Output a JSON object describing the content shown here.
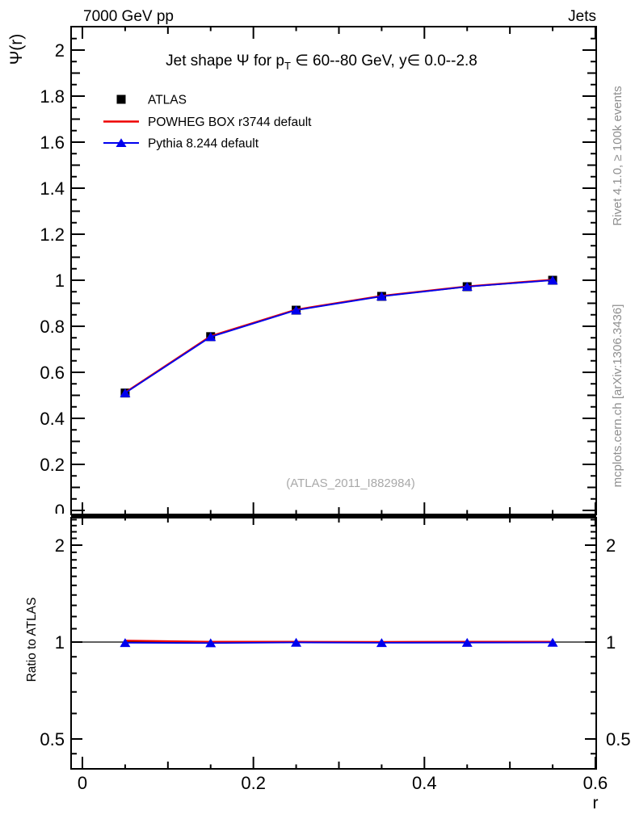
{
  "header": {
    "left": "7000 GeV pp",
    "right": "Jets"
  },
  "side_notes": {
    "top": "Rivet 4.1.0, ≥ 100k events",
    "bottom": "mcplots.cern.ch [arXiv:1306.3436]"
  },
  "watermark": "(ATLAS_2011_I882984)",
  "title_parts": {
    "prefix": "Jet shape Ψ for p",
    "sub": "T",
    "suffix": " ∈ 60--80 GeV, y∈ 0.0--2.8"
  },
  "axis_labels": {
    "x": "r",
    "y_main": "Ψ(r)",
    "y_ratio": "Ratio to ATLAS"
  },
  "legend": [
    {
      "label": "ATLAS",
      "marker": "square",
      "color": "#000000"
    },
    {
      "label": "POWHEG BOX r3744 default",
      "marker": "line",
      "color": "#ee0000"
    },
    {
      "label": "Pythia 8.244 default",
      "marker": "line-triangle",
      "color": "#0000ee"
    }
  ],
  "chart_data": {
    "type": "line",
    "title": "Jet shape Ψ for p_T ∈ 60--80 GeV, y ∈ 0.0--2.8",
    "xlabel": "r",
    "x": [
      0.05,
      0.15,
      0.25,
      0.35,
      0.45,
      0.55
    ],
    "x_axis": {
      "majors": [
        0,
        0.2,
        0.4,
        0.6
      ],
      "minor_step": 0.05,
      "max": 0.6,
      "lim": [
        -0.013,
        0.601
      ]
    },
    "main_panel": {
      "ylabel": "Ψ(r)",
      "yscale": "linear",
      "ylim": [
        -0.018,
        2.101
      ],
      "yticks": {
        "majors": [
          0,
          0.2,
          0.4,
          0.6,
          0.8,
          1,
          1.2,
          1.4,
          1.6,
          1.8,
          2
        ],
        "minor_step": 0.05,
        "max": 2.06
      },
      "series": [
        {
          "name": "ATLAS",
          "style": "marker",
          "marker": "square",
          "color": "#000000",
          "values": [
            0.51,
            0.755,
            0.87,
            0.93,
            0.972,
            1.0
          ]
        },
        {
          "name": "POWHEG BOX r3744 default",
          "style": "line",
          "color": "#ee0000",
          "values": [
            0.512,
            0.757,
            0.872,
            0.932,
            0.973,
            1.002
          ]
        },
        {
          "name": "Pythia 8.244 default",
          "style": "line+marker",
          "marker": "triangle",
          "color": "#0000ee",
          "values": [
            0.51,
            0.754,
            0.87,
            0.93,
            0.972,
            1.0
          ]
        }
      ]
    },
    "ratio_panel": {
      "ylabel": "Ratio to ATLAS",
      "yscale": "log",
      "ylim": [
        0.403,
        2.434
      ],
      "reference": 1,
      "yticks": {
        "majors": [
          0.5,
          1,
          2
        ],
        "minors": [
          0.45,
          0.6,
          0.7,
          0.8,
          0.9,
          1.1,
          1.2,
          1.3,
          1.4,
          1.5,
          1.6,
          1.7,
          1.8,
          1.9,
          2.1,
          2.2,
          2.3,
          2.4
        ]
      },
      "series": [
        {
          "name": "POWHEG BOX r3744 default",
          "style": "line",
          "color": "#ee0000",
          "values": [
            1.01,
            1.002,
            1.002,
            1.001,
            1.002,
            1.002
          ]
        },
        {
          "name": "Pythia 8.244 default",
          "style": "line+marker",
          "marker": "triangle",
          "color": "#0000ee",
          "values": [
            0.995,
            0.993,
            0.997,
            0.995,
            0.996,
            0.997
          ]
        }
      ]
    }
  }
}
